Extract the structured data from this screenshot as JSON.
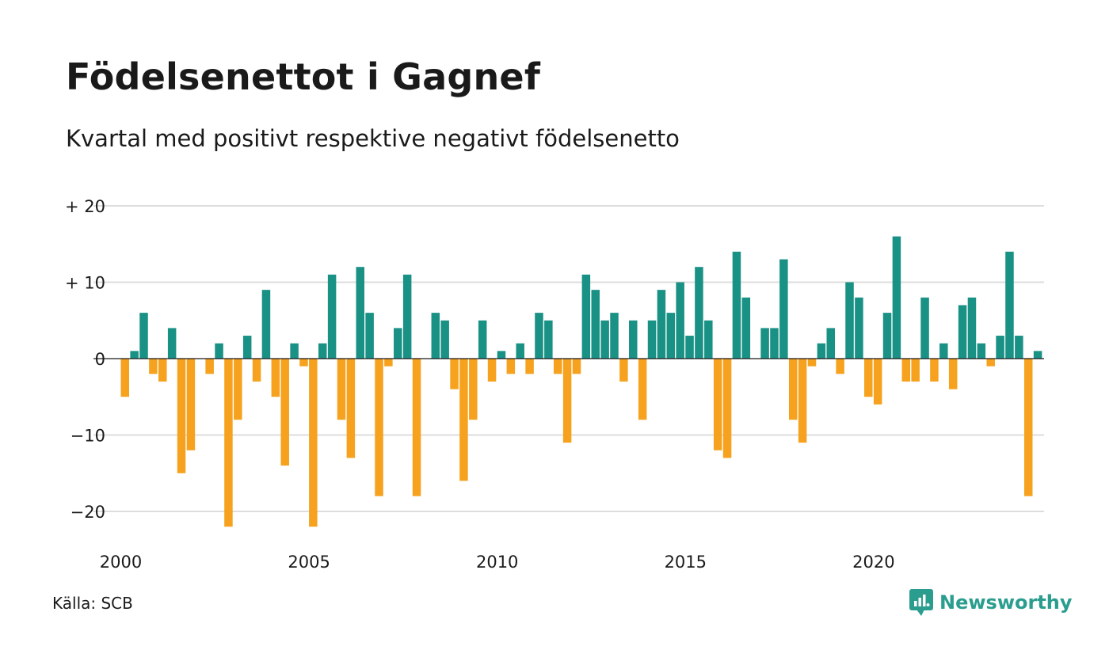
{
  "header": {
    "title": "Födelsenettot i Gagnef",
    "subtitle": "Kvartal med positivt respektive negativt födelsenetto"
  },
  "footer": {
    "source": "Källa: SCB",
    "brand": "Newsworthy",
    "brand_icon": "newsworthy-logo-icon"
  },
  "colors": {
    "positive": "#1a9185",
    "negative": "#f6a21e",
    "grid": "#dddddd",
    "zero_line": "#1a1a1a",
    "brand": "#2a9d8f"
  },
  "chart_data": {
    "type": "bar",
    "title": "Födelsenettot i Gagnef",
    "subtitle": "Kvartal med positivt respektive negativt födelsenetto",
    "xlabel": "",
    "ylabel": "",
    "x_start": 2000,
    "periods_per_year": 4,
    "ylim": [
      -24,
      20
    ],
    "yticks": [
      {
        "value": 20,
        "label": "+ 20"
      },
      {
        "value": 10,
        "label": "+ 10"
      },
      {
        "value": 0,
        "label": "0"
      },
      {
        "value": -10,
        "label": "−10"
      },
      {
        "value": -20,
        "label": "−20"
      }
    ],
    "xticks": [
      {
        "value": 2000,
        "label": "2000"
      },
      {
        "value": 2005,
        "label": "2005"
      },
      {
        "value": 2010,
        "label": "2010"
      },
      {
        "value": 2015,
        "label": "2015"
      },
      {
        "value": 2020,
        "label": "2020"
      }
    ],
    "grid": true,
    "legend": "none",
    "values": [
      -5,
      1,
      6,
      -2,
      -3,
      4,
      -15,
      -12,
      0,
      -2,
      2,
      -22,
      -8,
      3,
      -3,
      9,
      -5,
      -14,
      2,
      -1,
      -22,
      2,
      11,
      -8,
      -13,
      12,
      6,
      -18,
      -1,
      4,
      11,
      -18,
      0,
      6,
      5,
      -4,
      -16,
      -8,
      5,
      -3,
      1,
      -2,
      2,
      -2,
      6,
      5,
      -2,
      -11,
      -2,
      11,
      9,
      5,
      6,
      -3,
      5,
      -8,
      5,
      9,
      6,
      10,
      3,
      12,
      5,
      -12,
      -13,
      14,
      8,
      0,
      4,
      4,
      13,
      -8,
      -11,
      -1,
      2,
      4,
      -2,
      10,
      8,
      -5,
      -6,
      6,
      16,
      -3,
      -3,
      8,
      -3,
      2,
      -4,
      7,
      8,
      2,
      -1,
      3,
      14,
      3,
      -18,
      1
    ]
  }
}
